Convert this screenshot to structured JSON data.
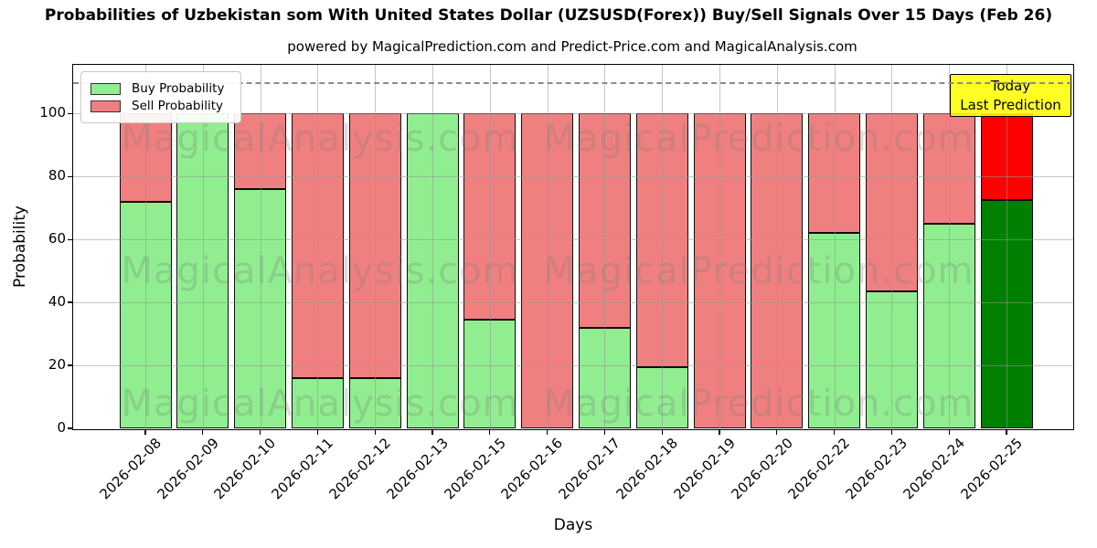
{
  "figure": {
    "title": "Probabilities of Uzbekistan som With United States Dollar (UZSUSD(Forex)) Buy/Sell Signals Over 15 Days (Feb 26)",
    "subtitle": "powered by MagicalPrediction.com and Predict-Price.com and MagicalAnalysis.com"
  },
  "axes": {
    "xlabel": "Days",
    "ylabel": "Probability",
    "yticks": [
      0,
      20,
      40,
      60,
      80,
      100
    ],
    "ylim": [
      0,
      115.4
    ],
    "dashed_line_y": 110
  },
  "legend": {
    "items": [
      {
        "label": "Buy Probability",
        "color": "#90EE90"
      },
      {
        "label": "Sell Probability",
        "color": "#F08080"
      }
    ]
  },
  "annotation": {
    "line1": "Today",
    "line2": "Last Prediction",
    "bg_color": "#FFFF00"
  },
  "watermarks": {
    "left_text": "MagicalAnalysis.com",
    "right_text": "MagicalPrediction.com"
  },
  "chart_data": {
    "type": "bar",
    "stacked": true,
    "title": "Probabilities of Uzbekistan som With United States Dollar (UZSUSD(Forex)) Buy/Sell Signals Over 15 Days (Feb 26)",
    "subtitle": "powered by MagicalPrediction.com and Predict-Price.com and MagicalAnalysis.com",
    "xlabel": "Days",
    "ylabel": "Probability",
    "ylim": [
      0,
      115.4
    ],
    "yticks": [
      0,
      20,
      40,
      60,
      80,
      100
    ],
    "grid": true,
    "legend_position": "upper left",
    "dashed_line_y": 110,
    "bar_edge_color": "#000000",
    "categories": [
      "2026-02-08",
      "2026-02-09",
      "2026-02-10",
      "2026-02-11",
      "2026-02-12",
      "2026-02-13",
      "2026-02-15",
      "2026-02-16",
      "2026-02-17",
      "2026-02-18",
      "2026-02-19",
      "2026-02-20",
      "2026-02-22",
      "2026-02-23",
      "2026-02-24",
      "2026-02-25"
    ],
    "series": [
      {
        "name": "Buy Probability",
        "color": "#90EE90",
        "values": [
          72,
          100,
          76,
          16,
          16,
          100,
          34.5,
          0,
          32,
          19.5,
          0,
          0,
          62,
          43.5,
          65,
          72.5
        ]
      },
      {
        "name": "Sell Probability",
        "color": "#F08080",
        "values": [
          28,
          0,
          24,
          84,
          84,
          0,
          65.5,
          100,
          68,
          80.5,
          100,
          100,
          38,
          56.5,
          35,
          27.5
        ]
      }
    ],
    "today": {
      "index": 15,
      "buy_color": "#008000",
      "sell_color": "#FF0000",
      "annotation": "Today Last Prediction"
    }
  }
}
